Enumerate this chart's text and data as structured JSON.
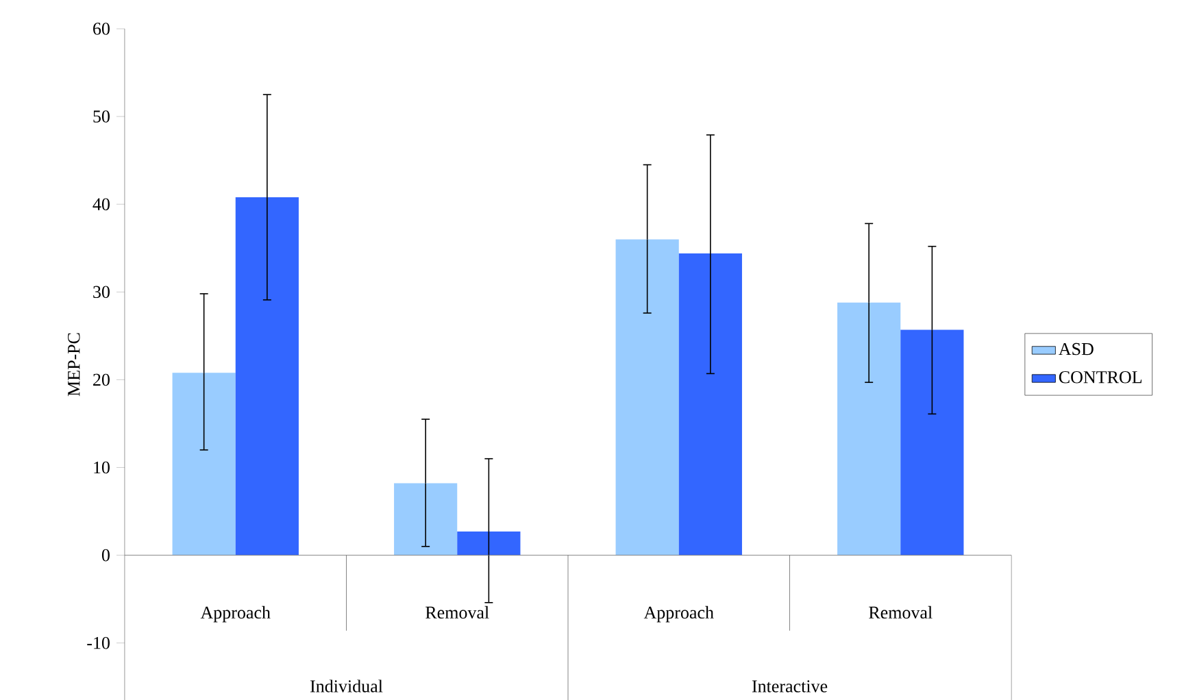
{
  "chart_data": {
    "type": "bar",
    "ylabel": "MEP-PC",
    "categories": [
      "Approach",
      "Removal",
      "Approach",
      "Removal"
    ],
    "annotations": [
      "Individual",
      "Interactive"
    ],
    "series": [
      {
        "name": "ASD",
        "color": "#99ccff",
        "values": [
          20.8,
          8.2,
          36.0,
          28.8
        ],
        "errors": [
          [
            12,
            29.8
          ],
          [
            1,
            15.5
          ],
          [
            27.6,
            44.5
          ],
          [
            19.7,
            37.8
          ]
        ]
      },
      {
        "name": "CONTROL",
        "color": "#3366ff",
        "values": [
          40.8,
          2.7,
          34.4,
          25.7
        ],
        "errors": [
          [
            29.1,
            52.5
          ],
          [
            -5.4,
            11
          ],
          [
            20.7,
            47.9
          ],
          [
            16.1,
            35.2
          ]
        ]
      }
    ],
    "ylim": [
      -16.5,
      60
    ],
    "yticks": [
      -10,
      0,
      10,
      20,
      30,
      40,
      50,
      60
    ],
    "legend": "right"
  }
}
